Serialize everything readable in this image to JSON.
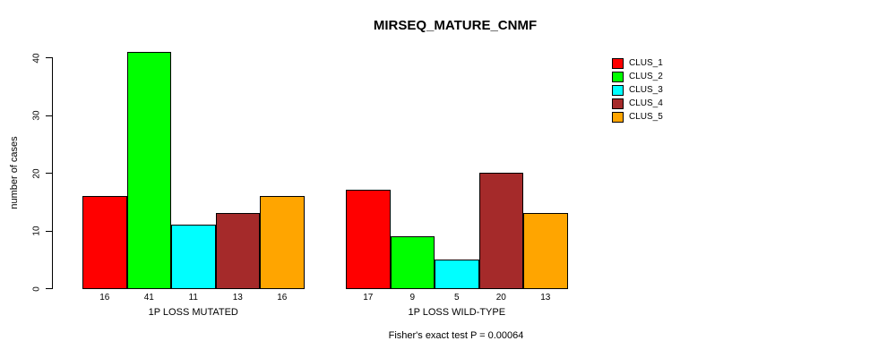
{
  "chart_data": {
    "type": "bar",
    "title": "MIRSEQ_MATURE_CNMF",
    "ylabel": "number of cases",
    "xlabel": "",
    "yticks": [
      0,
      10,
      20,
      30,
      40
    ],
    "ylim": [
      0,
      41
    ],
    "grid": false,
    "legend_position": "top-right",
    "bar_value_labels": true,
    "categories": [
      "1P LOSS MUTATED",
      "1P LOSS WILD-TYPE"
    ],
    "series": [
      {
        "name": "CLUS_1",
        "color": "#FF0000",
        "values": [
          16,
          17
        ]
      },
      {
        "name": "CLUS_2",
        "color": "#00FF00",
        "values": [
          41,
          9
        ]
      },
      {
        "name": "CLUS_3",
        "color": "#00FFFF",
        "values": [
          11,
          5
        ]
      },
      {
        "name": "CLUS_4",
        "color": "#A52A2A",
        "values": [
          13,
          20
        ]
      },
      {
        "name": "CLUS_5",
        "color": "#FFA500",
        "values": [
          16,
          13
        ]
      }
    ],
    "annotation": "Fisher's exact test P = 0.00064"
  }
}
